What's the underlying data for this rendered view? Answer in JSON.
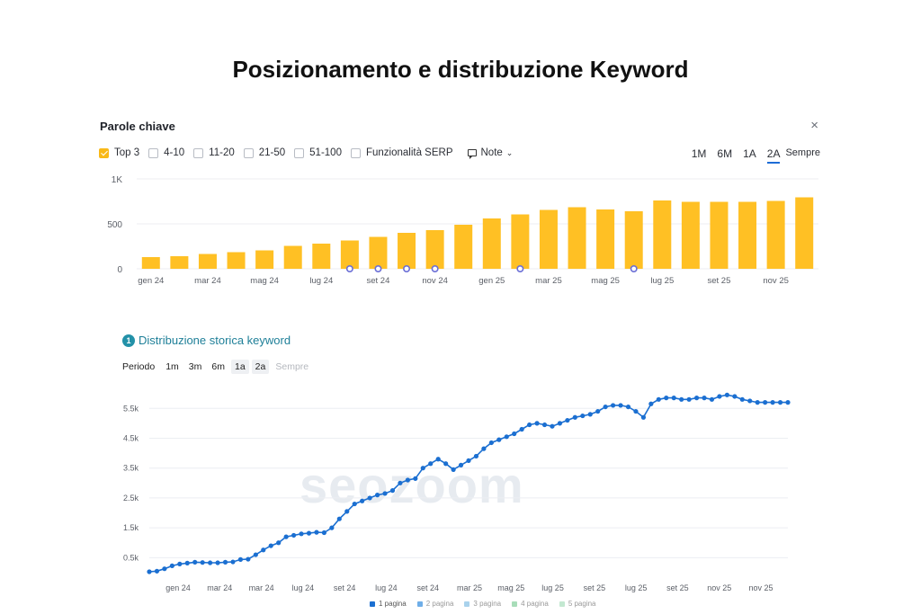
{
  "page_title": "Posizionamento e distribuzione Keyword",
  "panel1": {
    "title": "Parole chiave",
    "close_icon": "×",
    "filters": [
      {
        "label": "Top 3",
        "checked": true
      },
      {
        "label": "4-10",
        "checked": false
      },
      {
        "label": "11-20",
        "checked": false
      },
      {
        "label": "21-50",
        "checked": false
      },
      {
        "label": "51-100",
        "checked": false
      },
      {
        "label": "Funzionalità SERP",
        "checked": false
      }
    ],
    "note_label": "Note",
    "ranges": [
      "1M",
      "6M",
      "1A",
      "2A",
      "Sempre"
    ],
    "active_range": "2A",
    "colors": {
      "bar": "#FFC024",
      "grid": "#ECEEF2",
      "text": "#5B5F67"
    }
  },
  "panel2": {
    "badge": "1",
    "title": "Distribuzione storica keyword",
    "period_label": "Periodo",
    "periods": [
      "1m",
      "3m",
      "6m",
      "1a",
      "2a",
      "Sempre"
    ],
    "active_period": "1a",
    "disabled_period": "Sempre",
    "watermark": "seozoom",
    "legend": [
      {
        "label": "1 pagina",
        "color": "#1B6FD1"
      },
      {
        "label": "2 pagina",
        "color": "#6FAEE8"
      },
      {
        "label": "3 pagina",
        "color": "#A9D2EC"
      },
      {
        "label": "4 pagina",
        "color": "#A8DDB9"
      },
      {
        "label": "5 pagina",
        "color": "#C3E8D1"
      }
    ],
    "colors": {
      "line": "#1B6FD1",
      "grid": "#ECEEF2",
      "text": "#5B5F67"
    }
  },
  "chart_data": [
    {
      "type": "bar",
      "title": "Parole chiave",
      "y_ticks": [
        "0",
        "500",
        "1K"
      ],
      "ylim": [
        0,
        1000
      ],
      "x_tick_labels": [
        "gen 24",
        "mar 24",
        "mag 24",
        "lug 24",
        "set 24",
        "nov 24",
        "gen 25",
        "mar 25",
        "mag 25",
        "lug 25",
        "set 25",
        "nov 25"
      ],
      "categories": [
        "gen 24",
        "feb 24",
        "mar 24",
        "apr 24",
        "mag 24",
        "giu 24",
        "lug 24",
        "ago 24",
        "set 24",
        "ott 24",
        "nov 24",
        "dic 24",
        "gen 25",
        "feb 25",
        "mar 25",
        "apr 25",
        "mag 25",
        "giu 25",
        "lug 25",
        "ago 25",
        "set 25",
        "ott 25",
        "nov 25",
        "dic 25"
      ],
      "series": [
        {
          "name": "Top 3",
          "values": [
            130,
            140,
            165,
            185,
            205,
            255,
            280,
            315,
            355,
            400,
            430,
            490,
            560,
            605,
            655,
            685,
            660,
            640,
            760,
            745,
            745,
            745,
            755,
            795
          ]
        }
      ],
      "note_markers": [
        "ago 24",
        "set 24",
        "ott 24",
        "nov 24",
        "feb 25",
        "giu 25"
      ],
      "grid": true
    },
    {
      "type": "line",
      "title": "Distribuzione storica keyword",
      "y_ticks": [
        "0.5k",
        "1.5k",
        "2.5k",
        "3.5k",
        "4.5k",
        "5.5k"
      ],
      "ylim": [
        0,
        6200
      ],
      "x_tick_labels": [
        "gen 24",
        "mar 24",
        "mar 24",
        "lug 24",
        "set 24",
        "lug 24",
        "set 24",
        "mar 25",
        "mag 25",
        "lug 25",
        "set 25",
        "lug 25",
        "set 25",
        "nov 25",
        "nov 25"
      ],
      "series": [
        {
          "name": "1 pagina",
          "values": [
            30,
            50,
            130,
            230,
            290,
            320,
            350,
            340,
            330,
            330,
            350,
            360,
            440,
            450,
            600,
            760,
            900,
            1000,
            1200,
            1250,
            1300,
            1320,
            1350,
            1340,
            1500,
            1800,
            2050,
            2300,
            2400,
            2500,
            2600,
            2650,
            2750,
            3000,
            3100,
            3150,
            3500,
            3650,
            3800,
            3650,
            3450,
            3600,
            3750,
            3900,
            4150,
            4350,
            4450,
            4550,
            4650,
            4800,
            4950,
            5000,
            4950,
            4900,
            5000,
            5100,
            5200,
            5250,
            5300,
            5400,
            5550,
            5600,
            5600,
            5550,
            5400,
            5200,
            5650,
            5800,
            5850,
            5850,
            5800,
            5800,
            5850,
            5850,
            5800,
            5900,
            5950,
            5900,
            5800,
            5750,
            5700,
            5700,
            5700,
            5700,
            5700
          ]
        }
      ],
      "grid": true
    }
  ]
}
